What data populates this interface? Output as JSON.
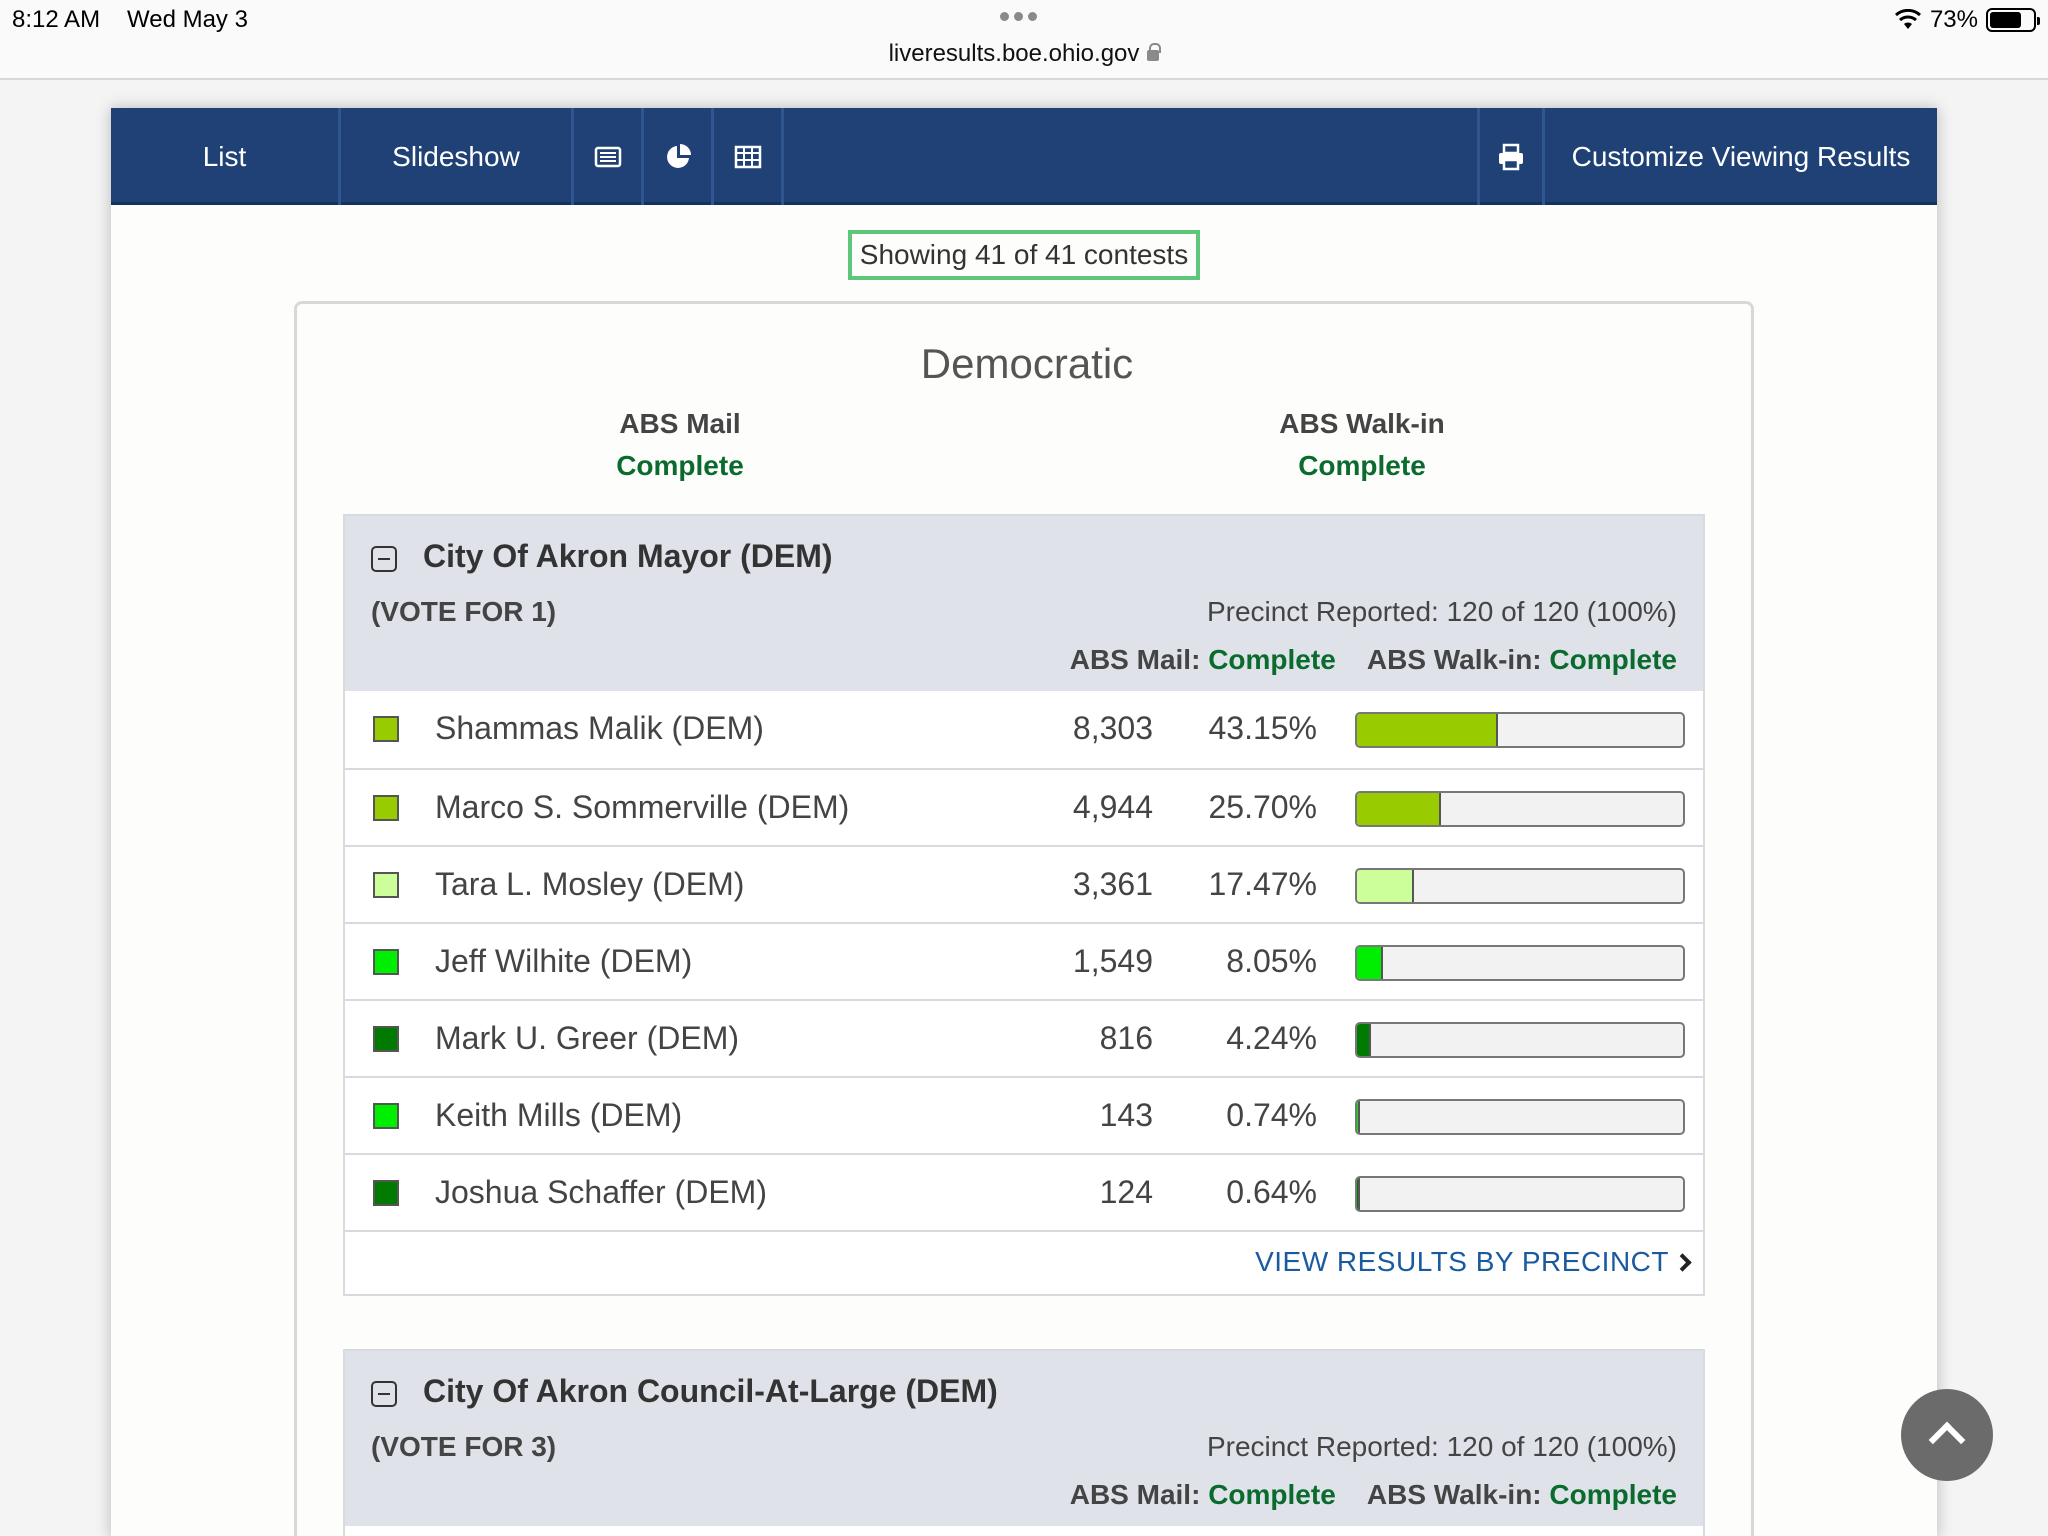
{
  "status": {
    "time": "8:12 AM",
    "date": "Wed May 3",
    "url": "liveresults.boe.ohio.gov",
    "battery": "73%"
  },
  "nav": {
    "list": "List",
    "slideshow": "Slideshow",
    "icons": [
      "list-view-icon",
      "pie-chart-icon",
      "table-icon",
      "print-icon"
    ],
    "customize": "Customize Viewing Results"
  },
  "showing": "Showing 41 of 41 contests",
  "section": {
    "party": "Democratic",
    "abs_mail_label": "ABS Mail",
    "abs_mail_status": "Complete",
    "abs_walkin_label": "ABS Walk-in",
    "abs_walkin_status": "Complete"
  },
  "contests": [
    {
      "title": "City Of Akron Mayor (DEM)",
      "vote_for": "(VOTE FOR 1)",
      "precinct": "Precinct Reported: 120 of 120 (100%)",
      "abs_mail_label": "ABS Mail:",
      "abs_mail_status": "Complete",
      "abs_walkin_label": "ABS Walk-in:",
      "abs_walkin_status": "Complete",
      "candidates": [
        {
          "name": "Shammas Malik (DEM)",
          "votes": "8,303",
          "pct": "43.15%",
          "share": 0.4315,
          "color": "#99cc00"
        },
        {
          "name": "Marco S. Sommerville (DEM)",
          "votes": "4,944",
          "pct": "25.70%",
          "share": 0.257,
          "color": "#99cc00"
        },
        {
          "name": "Tara L. Mosley (DEM)",
          "votes": "3,361",
          "pct": "17.47%",
          "share": 0.1747,
          "color": "#ccff99"
        },
        {
          "name": "Jeff Wilhite (DEM)",
          "votes": "1,549",
          "pct": "8.05%",
          "share": 0.0805,
          "color": "#00ee00"
        },
        {
          "name": "Mark U. Greer (DEM)",
          "votes": "816",
          "pct": "4.24%",
          "share": 0.0424,
          "color": "#007a00"
        },
        {
          "name": "Keith Mills (DEM)",
          "votes": "143",
          "pct": "0.74%",
          "share": 0.0074,
          "color": "#00ee00"
        },
        {
          "name": "Joshua Schaffer (DEM)",
          "votes": "124",
          "pct": "0.64%",
          "share": 0.0064,
          "color": "#007a00"
        }
      ],
      "view_results": "VIEW RESULTS BY PRECINCT"
    },
    {
      "title": "City Of Akron Council-At-Large (DEM)",
      "vote_for": "(VOTE FOR 3)",
      "precinct": "Precinct Reported: 120 of 120 (100%)",
      "abs_mail_label": "ABS Mail:",
      "abs_mail_status": "Complete",
      "abs_walkin_label": "ABS Walk-in:",
      "abs_walkin_status": "Complete"
    }
  ]
}
